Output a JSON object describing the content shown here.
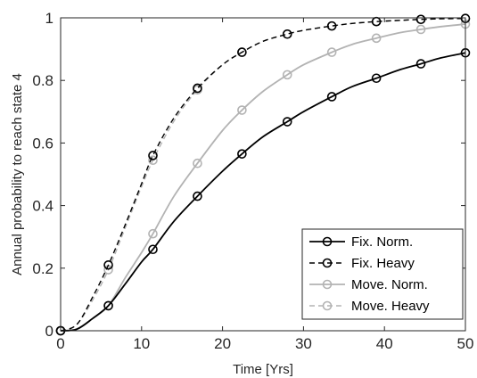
{
  "chart_data": {
    "type": "line",
    "xlabel": "Time [Yrs]",
    "ylabel": "Annual probability to reach state 4",
    "xlim": [
      0,
      50
    ],
    "ylim": [
      0,
      1
    ],
    "x_ticks": [
      "0",
      "10",
      "20",
      "30",
      "40",
      "50"
    ],
    "y_ticks": [
      "0",
      "0.2",
      "0.4",
      "0.6",
      "0.8",
      "1"
    ],
    "grid": false,
    "legend_position": "bottom-right",
    "marker_x": [
      0,
      5.9,
      11.4,
      16.9,
      22.4,
      28.0,
      33.5,
      39.0,
      44.5,
      50.0
    ],
    "series": [
      {
        "name": "Fix. Norm.",
        "color": "#000000",
        "dash": "solid",
        "x": [
          0,
          2,
          4,
          5.9,
          8,
          10,
          11.4,
          14,
          16.9,
          20,
          22.4,
          25,
          28.0,
          30,
          33.5,
          36,
          39.0,
          42,
          44.5,
          47,
          50.0
        ],
        "values": [
          0,
          0.005,
          0.04,
          0.08,
          0.15,
          0.22,
          0.26,
          0.35,
          0.43,
          0.51,
          0.565,
          0.62,
          0.668,
          0.7,
          0.748,
          0.78,
          0.807,
          0.835,
          0.853,
          0.872,
          0.888
        ]
      },
      {
        "name": "Fix. Heavy",
        "color": "#000000",
        "dash": "dashed",
        "x": [
          0,
          2,
          4,
          5.9,
          8,
          10,
          11.4,
          14,
          16.9,
          20,
          22.4,
          25,
          28.0,
          30,
          33.5,
          36,
          39.0,
          42,
          44.5,
          47,
          50.0
        ],
        "values": [
          0,
          0.02,
          0.11,
          0.21,
          0.34,
          0.47,
          0.56,
          0.68,
          0.775,
          0.85,
          0.89,
          0.925,
          0.948,
          0.96,
          0.974,
          0.982,
          0.988,
          0.992,
          0.995,
          0.997,
          0.998
        ]
      },
      {
        "name": "Move. Norm.",
        "color": "#b3b3b3",
        "dash": "solid",
        "x": [
          0,
          2,
          4,
          5.9,
          8,
          10,
          11.4,
          14,
          16.9,
          20,
          22.4,
          25,
          28.0,
          30,
          33.5,
          36,
          39.0,
          42,
          44.5,
          47,
          50.0
        ],
        "values": [
          0,
          0.005,
          0.04,
          0.08,
          0.17,
          0.25,
          0.31,
          0.43,
          0.535,
          0.64,
          0.705,
          0.765,
          0.818,
          0.85,
          0.89,
          0.915,
          0.935,
          0.953,
          0.963,
          0.972,
          0.98
        ]
      },
      {
        "name": "Move. Heavy",
        "color": "#b3b3b3",
        "dash": "dashed",
        "x": [
          0,
          2,
          4,
          5.9,
          8,
          10,
          11.4,
          14,
          16.9,
          20,
          22.4,
          25,
          28.0,
          30,
          33.5,
          36,
          39.0,
          42,
          44.5,
          47,
          50.0
        ],
        "values": [
          0,
          0.02,
          0.1,
          0.195,
          0.33,
          0.46,
          0.545,
          0.67,
          0.77,
          0.85,
          0.89,
          0.925,
          0.948,
          0.96,
          0.974,
          0.982,
          0.988,
          0.992,
          0.995,
          0.997,
          0.998
        ]
      }
    ]
  }
}
